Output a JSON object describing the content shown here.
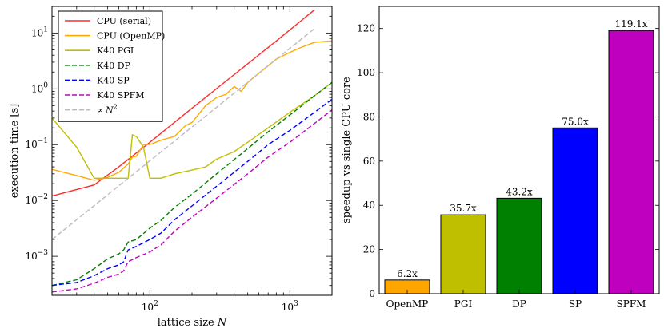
{
  "chart_data": [
    {
      "type": "line",
      "xscale": "log",
      "yscale": "log",
      "xlabel_prefix": "lattice size",
      "xlabel_var": "N",
      "ylabel": "execution time [s]",
      "xlim": [
        20,
        2000
      ],
      "ylim": [
        0.0002,
        30
      ],
      "x_ticks": [
        {
          "value": 100,
          "base": "10",
          "exp": "2"
        },
        {
          "value": 1000,
          "base": "10",
          "exp": "3"
        }
      ],
      "y_ticks": [
        {
          "value": 0.001,
          "base": "10",
          "exp": "−3"
        },
        {
          "value": 0.01,
          "base": "10",
          "exp": "−2"
        },
        {
          "value": 0.1,
          "base": "10",
          "exp": "−1"
        },
        {
          "value": 1,
          "base": "10",
          "exp": "0"
        },
        {
          "value": 10,
          "base": "10",
          "exp": "1"
        }
      ],
      "legend_position": "top-left",
      "series": [
        {
          "name": "CPU (serial)",
          "color": "#ff2a2a",
          "dash": "solid",
          "points": [
            [
              20,
              0.012
            ],
            [
              40,
              0.019
            ],
            [
              60,
              0.04
            ],
            [
              100,
              0.11
            ],
            [
              200,
              0.45
            ],
            [
              400,
              1.8
            ],
            [
              800,
              7.2
            ],
            [
              1500,
              26
            ]
          ]
        },
        {
          "name": "CPU (OpenMP)",
          "color": "#ffaa00",
          "dash": "solid",
          "points": [
            [
              20,
              0.036
            ],
            [
              30,
              0.028
            ],
            [
              40,
              0.023
            ],
            [
              50,
              0.026
            ],
            [
              60,
              0.032
            ],
            [
              70,
              0.045
            ],
            [
              75,
              0.06
            ],
            [
              80,
              0.062
            ],
            [
              90,
              0.1
            ],
            [
              100,
              0.1
            ],
            [
              120,
              0.12
            ],
            [
              150,
              0.14
            ],
            [
              180,
              0.22
            ],
            [
              200,
              0.25
            ],
            [
              250,
              0.5
            ],
            [
              300,
              0.7
            ],
            [
              350,
              0.8
            ],
            [
              400,
              1.1
            ],
            [
              450,
              0.9
            ],
            [
              500,
              1.3
            ],
            [
              600,
              1.9
            ],
            [
              700,
              2.6
            ],
            [
              800,
              3.4
            ],
            [
              1000,
              4.5
            ],
            [
              1200,
              5.5
            ],
            [
              1500,
              6.8
            ],
            [
              2000,
              7.2
            ]
          ]
        },
        {
          "name": "K40 PGI",
          "color": "#bfbf00",
          "dash": "solid",
          "points": [
            [
              20,
              0.3
            ],
            [
              30,
              0.09
            ],
            [
              40,
              0.025
            ],
            [
              50,
              0.025
            ],
            [
              60,
              0.025
            ],
            [
              70,
              0.025
            ],
            [
              75,
              0.15
            ],
            [
              80,
              0.14
            ],
            [
              90,
              0.09
            ],
            [
              100,
              0.025
            ],
            [
              120,
              0.025
            ],
            [
              150,
              0.03
            ],
            [
              200,
              0.035
            ],
            [
              250,
              0.04
            ],
            [
              300,
              0.055
            ],
            [
              400,
              0.075
            ],
            [
              500,
              0.11
            ],
            [
              700,
              0.2
            ],
            [
              1000,
              0.38
            ],
            [
              1500,
              0.75
            ],
            [
              2000,
              1.3
            ]
          ]
        },
        {
          "name": "K40 DP",
          "color": "#008000",
          "dash": "dash",
          "points": [
            [
              20,
              0.0003
            ],
            [
              30,
              0.00038
            ],
            [
              40,
              0.0006
            ],
            [
              50,
              0.0009
            ],
            [
              60,
              0.0011
            ],
            [
              65,
              0.0013
            ],
            [
              70,
              0.0018
            ],
            [
              80,
              0.002
            ],
            [
              100,
              0.0032
            ],
            [
              120,
              0.0044
            ],
            [
              150,
              0.0075
            ],
            [
              200,
              0.013
            ],
            [
              300,
              0.03
            ],
            [
              500,
              0.085
            ],
            [
              700,
              0.17
            ],
            [
              1000,
              0.34
            ],
            [
              1500,
              0.75
            ],
            [
              2000,
              1.3
            ]
          ]
        },
        {
          "name": "K40 SP",
          "color": "#0000ff",
          "dash": "dash",
          "points": [
            [
              20,
              0.0003
            ],
            [
              30,
              0.00034
            ],
            [
              40,
              0.00045
            ],
            [
              50,
              0.0006
            ],
            [
              60,
              0.0007
            ],
            [
              65,
              0.0008
            ],
            [
              70,
              0.0013
            ],
            [
              80,
              0.0015
            ],
            [
              100,
              0.002
            ],
            [
              120,
              0.0026
            ],
            [
              150,
              0.0045
            ],
            [
              200,
              0.008
            ],
            [
              300,
              0.018
            ],
            [
              500,
              0.05
            ],
            [
              700,
              0.1
            ],
            [
              1000,
              0.18
            ],
            [
              1500,
              0.38
            ],
            [
              2000,
              0.65
            ]
          ]
        },
        {
          "name": "K40 SPFM",
          "color": "#bf00bf",
          "dash": "dash",
          "points": [
            [
              20,
              0.00023
            ],
            [
              30,
              0.00026
            ],
            [
              40,
              0.00033
            ],
            [
              50,
              0.00042
            ],
            [
              60,
              0.00048
            ],
            [
              65,
              0.00055
            ],
            [
              70,
              0.0008
            ],
            [
              80,
              0.00095
            ],
            [
              100,
              0.0012
            ],
            [
              120,
              0.0016
            ],
            [
              150,
              0.0028
            ],
            [
              200,
              0.005
            ],
            [
              300,
              0.011
            ],
            [
              500,
              0.03
            ],
            [
              700,
              0.06
            ],
            [
              1000,
              0.11
            ],
            [
              1500,
              0.24
            ],
            [
              2000,
              0.42
            ]
          ]
        },
        {
          "name_prefix": "∝",
          "name_var": "N",
          "name_sup": "2",
          "color": "#bbbbbb",
          "dash": "dash",
          "points": [
            [
              20,
              0.002
            ],
            [
              1500,
              12
            ]
          ]
        }
      ]
    },
    {
      "type": "bar",
      "ylabel": "speedup vs single CPU core",
      "ylim": [
        0,
        130
      ],
      "y_ticks": [
        0,
        20,
        40,
        60,
        80,
        100,
        120
      ],
      "categories": [
        "OpenMP",
        "PGI",
        "DP",
        "SP",
        "SPFM"
      ],
      "values": [
        6.2,
        35.7,
        43.2,
        75.0,
        119.1
      ],
      "value_labels": [
        "6.2x",
        "35.7x",
        "43.2x",
        "75.0x",
        "119.1x"
      ],
      "colors": [
        "#ffa500",
        "#bfbf00",
        "#008000",
        "#0000ff",
        "#bf00bf"
      ]
    }
  ]
}
